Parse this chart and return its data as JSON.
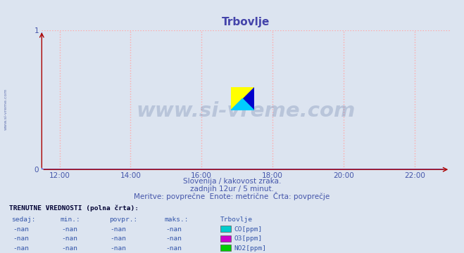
{
  "title": "Trbovlje",
  "title_color": "#4444aa",
  "background_color": "#dce4f0",
  "plot_bg_color": "#dce4f0",
  "xlim": [
    11.5,
    23.0
  ],
  "ylim": [
    0,
    1.0
  ],
  "xticks": [
    12,
    14,
    16,
    18,
    20,
    22
  ],
  "xtick_labels": [
    "12:00",
    "14:00",
    "16:00",
    "18:00",
    "20:00",
    "22:00"
  ],
  "yticks": [
    0,
    1
  ],
  "ytick_labels": [
    "0",
    "1"
  ],
  "grid_color": "#ffaaaa",
  "grid_linestyle": ":",
  "axis_color": "#3333cc",
  "arrow_color": "#aa0000",
  "watermark_text": "www.si-vreme.com",
  "watermark_color": "#1a3a7a",
  "watermark_alpha": 0.18,
  "side_text": "www.si-vreme.com",
  "side_text_color": "#5566aa",
  "subtitle1": "Slovenija / kakovost zraka.",
  "subtitle2": "zadnjih 12ur / 5 minut.",
  "subtitle3": "Meritve: povprečne  Enote: metrične  Črta: povprečje",
  "subtitle_color": "#4455aa",
  "tick_color": "#4455aa",
  "table_header": "TRENUTNE VREDNOSTI (polna črta):",
  "table_header_color": "#000033",
  "col_headers": [
    "sedaj:",
    "min.:",
    "povpr.:",
    "maks.:",
    "Trbovlje"
  ],
  "col_header_color": "#3355aa",
  "rows": [
    [
      "-nan",
      "-nan",
      "-nan",
      "-nan",
      "CO[ppm]",
      "#00cccc"
    ],
    [
      "-nan",
      "-nan",
      "-nan",
      "-nan",
      "O3[ppm]",
      "#cc00cc"
    ],
    [
      "-nan",
      "-nan",
      "-nan",
      "-nan",
      "NO2[ppm]",
      "#00cc00"
    ]
  ],
  "row_color": "#3355aa",
  "logo_yellow": "#ffff00",
  "logo_cyan": "#00ccff",
  "logo_blue": "#0000cc"
}
